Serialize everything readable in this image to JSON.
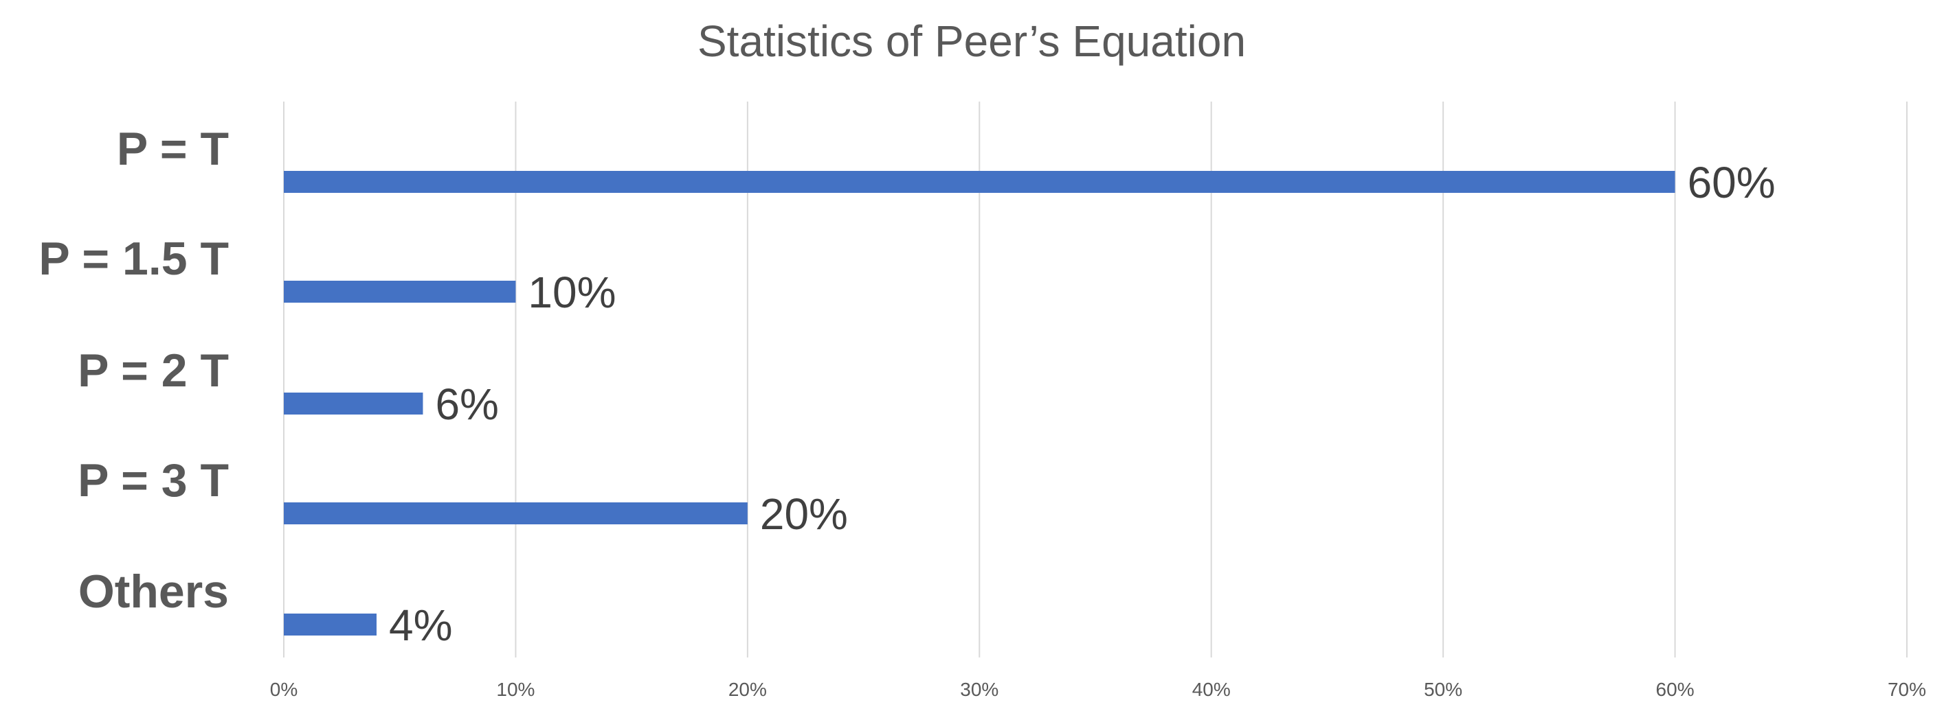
{
  "chart_data": {
    "type": "bar",
    "orientation": "horizontal",
    "title": "Statistics of Peer’s Equation",
    "categories": [
      "P = T",
      "P = 1.5 T",
      "P = 2 T",
      "P = 3 T",
      "Others"
    ],
    "values": [
      60,
      10,
      6,
      20,
      4
    ],
    "value_labels": [
      "60%",
      "10%",
      "6%",
      "20%",
      "4%"
    ],
    "xlim": [
      0,
      70
    ],
    "x_ticks": [
      0,
      10,
      20,
      30,
      40,
      50,
      60,
      70
    ],
    "x_tick_labels": [
      "0%",
      "10%",
      "20%",
      "30%",
      "40%",
      "50%",
      "60%",
      "70%"
    ],
    "xlabel": "",
    "ylabel": "",
    "grid": "vertical major gridlines",
    "legend": "none",
    "colors": {
      "bar": "#4472C4",
      "grid": "#D9D9D9",
      "text": "#595959",
      "data_label": "#404040"
    }
  }
}
